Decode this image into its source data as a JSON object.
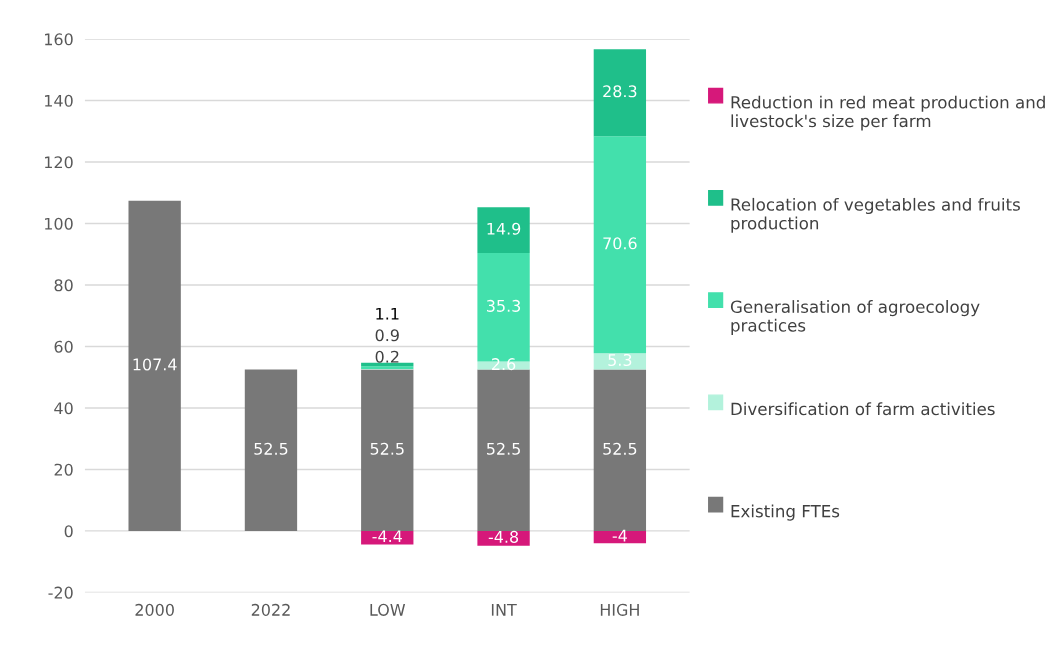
{
  "chart_data": {
    "type": "bar",
    "stacked": true,
    "categories": [
      "2000",
      "2022",
      "LOW",
      "INT",
      "HIGH"
    ],
    "series": [
      {
        "name": "Existing FTEs",
        "color": "#787878",
        "values": [
          107.4,
          52.5,
          52.5,
          52.5,
          52.5
        ]
      },
      {
        "name": "Diversification of farm activities",
        "color": "#b3f2dc",
        "values": [
          null,
          null,
          0.2,
          2.6,
          5.3
        ]
      },
      {
        "name": "Generalisation of agroecology practices",
        "color": "#43e0ac",
        "values": [
          null,
          null,
          0.9,
          35.3,
          70.6
        ]
      },
      {
        "name": "Relocation of vegetables and fruits production",
        "color": "#1fbf8a",
        "values": [
          null,
          null,
          1.1,
          14.9,
          28.3
        ]
      },
      {
        "name": "Reduction in red meat production and livestock's size per farm",
        "color": "#d6187a",
        "values": [
          null,
          null,
          -4.4,
          -4.8,
          -4
        ]
      }
    ],
    "ylim": [
      -20,
      160
    ],
    "yticks": [
      -20,
      0,
      20,
      40,
      60,
      80,
      100,
      120,
      140,
      160
    ],
    "grid": "y",
    "legend": "right",
    "data_labels": true
  }
}
